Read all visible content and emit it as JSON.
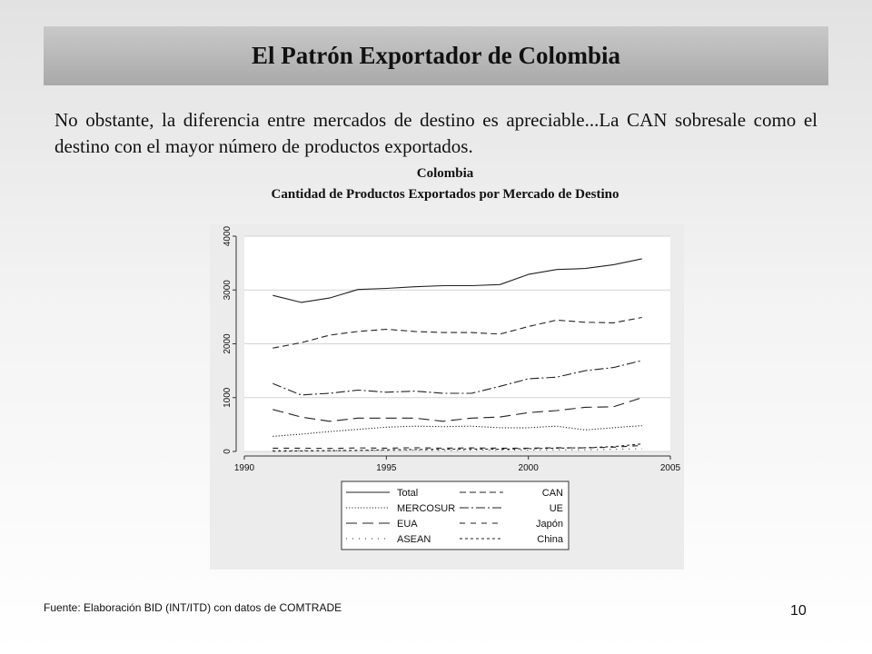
{
  "slide": {
    "title": "El Patrón Exportador de Colombia",
    "body": "No obstante, la diferencia entre mercados de destino es apreciable...La CAN sobresale como el destino con el mayor número de productos exportados.",
    "source": "Fuente: Elaboración BID (INT/ITD)  con datos de COMTRADE",
    "page_number": "10"
  },
  "chart_data": {
    "type": "line",
    "title": "Colombia",
    "subtitle": "Cantidad de Productos Exportados por Mercado de Destino",
    "xlabel": "",
    "ylabel": "",
    "xlim": [
      1990,
      2005
    ],
    "ylim": [
      0,
      4000
    ],
    "xticks": [
      1990,
      1995,
      2000,
      2005
    ],
    "yticks": [
      0,
      1000,
      2000,
      3000,
      4000
    ],
    "grid": "horizontal",
    "legend_position": "bottom",
    "x": [
      1991,
      1992,
      1993,
      1994,
      1995,
      1996,
      1997,
      1998,
      1999,
      2000,
      2001,
      2002,
      2003,
      2004
    ],
    "series": [
      {
        "name": "Total",
        "dash": "",
        "values": [
          2900,
          2770,
          2850,
          3010,
          3030,
          3060,
          3080,
          3080,
          3100,
          3290,
          3380,
          3400,
          3470,
          3580
        ]
      },
      {
        "name": "CAN",
        "dash": "7,4",
        "values": [
          1920,
          2020,
          2160,
          2230,
          2270,
          2230,
          2210,
          2210,
          2180,
          2320,
          2440,
          2400,
          2390,
          2490
        ]
      },
      {
        "name": "MERCOSUR",
        "dash": "1.2,2",
        "values": [
          280,
          320,
          370,
          410,
          450,
          470,
          460,
          470,
          440,
          440,
          470,
          400,
          440,
          480
        ]
      },
      {
        "name": "UE",
        "dash": "10,3,2,3",
        "values": [
          1260,
          1050,
          1080,
          1140,
          1100,
          1120,
          1080,
          1080,
          1210,
          1350,
          1380,
          1500,
          1560,
          1690
        ]
      },
      {
        "name": "EUA",
        "dash": "12,6",
        "values": [
          780,
          640,
          560,
          620,
          620,
          620,
          560,
          620,
          640,
          720,
          760,
          820,
          830,
          1000
        ]
      },
      {
        "name": "Japón",
        "dash": "6,6",
        "values": [
          60,
          60,
          55,
          65,
          60,
          70,
          60,
          65,
          60,
          60,
          70,
          65,
          80,
          110
        ]
      },
      {
        "name": "ASEAN",
        "dash": "1,6",
        "values": [
          20,
          20,
          15,
          20,
          20,
          25,
          20,
          25,
          25,
          25,
          30,
          30,
          40,
          50
        ]
      },
      {
        "name": "China",
        "dash": "3,3",
        "values": [
          5,
          10,
          15,
          20,
          30,
          35,
          40,
          45,
          40,
          50,
          60,
          70,
          90,
          140
        ]
      }
    ]
  }
}
